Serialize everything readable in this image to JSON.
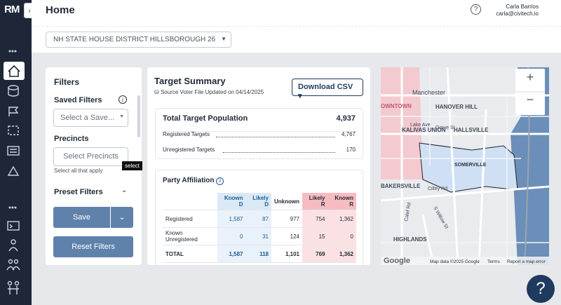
{
  "sidebar": {
    "logo": "RM"
  },
  "header": {
    "title": "Home",
    "user_name": "Carla Barrios",
    "user_email": "carla@civitech.io",
    "district_select": "NH STATE HOUSE DISTRICT HILLSBOROUGH 26"
  },
  "filters": {
    "title": "Filters",
    "saved_filters": "Saved Filters",
    "saved_placeholder": "Select a Save...",
    "precincts": "Precincts",
    "precincts_placeholder": "Select Precincts",
    "precincts_hint": "Select all that apply",
    "tooltip": "select",
    "preset_filters": "Preset Filters",
    "save": "Save",
    "reset": "Reset Filters"
  },
  "summary": {
    "title": "Target Summary",
    "source": "Source Voter File Updated on 04/14/2025",
    "download": "Download CSV",
    "total_label": "Total Target Population",
    "total_value": "4,937",
    "registered_label": "Registered Targets",
    "registered_value": "4,767",
    "unregistered_label": "Unregistered Targets",
    "unregistered_value": "170"
  },
  "party_table": {
    "title": "Party Affiliation",
    "columns": [
      "Known D",
      "Likely D",
      "Unknown",
      "Likely R",
      "Known R"
    ],
    "rows": [
      [
        "Registered",
        "1,587",
        "87",
        "977",
        "754",
        "1,362"
      ],
      [
        "Known Unregistered",
        "0",
        "31",
        "124",
        "15",
        "0"
      ],
      [
        "TOTAL",
        "1,587",
        "118",
        "1,101",
        "769",
        "1,362"
      ]
    ]
  },
  "map": {
    "labels": [
      "Manchester",
      "HANOVER HILL",
      "HALLSVILLE",
      "KALIVAS UNION",
      "SOMERVILLE",
      "BAKERSVILLE",
      "HIGHLANDS",
      "OWNTOWN",
      "Lake Ave",
      "Grove St",
      "Cilley Rd",
      "S Willow St",
      "Calef Rd"
    ],
    "zoom_in": "+",
    "zoom_out": "−",
    "google": "Google",
    "attribution": "Map data ©2025 Google",
    "terms": "Terms",
    "report": "Report a map error"
  },
  "help": "?"
}
